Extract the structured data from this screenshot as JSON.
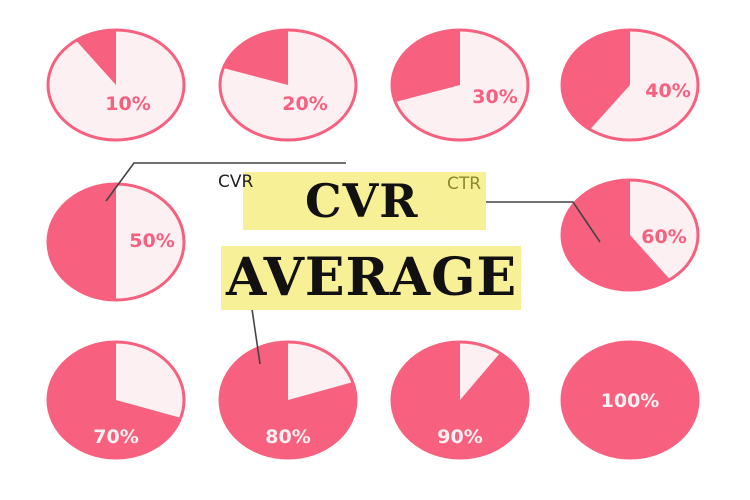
{
  "chart_data": {
    "type": "pie",
    "series": [
      {
        "label": "10%",
        "value": 10
      },
      {
        "label": "20%",
        "value": 20
      },
      {
        "label": "30%",
        "value": 30
      },
      {
        "label": "40%",
        "value": 40
      },
      {
        "label": "50%",
        "value": 50
      },
      {
        "label": "60%",
        "value": 60
      },
      {
        "label": "70%",
        "value": 70
      },
      {
        "label": "80%",
        "value": 80
      },
      {
        "label": "90%",
        "value": 90
      },
      {
        "label": "100%",
        "value": 100
      }
    ]
  },
  "title": {
    "line1": "CVR",
    "line2": "AVERAGE"
  },
  "annotations": {
    "cvr_label": "CVR",
    "ctr_label": "CTR"
  },
  "colors": {
    "fill": "#f7607e",
    "light": "#fdf0f3",
    "highlight": "#f8f096",
    "line": "#444444",
    "label_on_light": "#f7607e",
    "label_on_fill": "#fdf0f3"
  }
}
